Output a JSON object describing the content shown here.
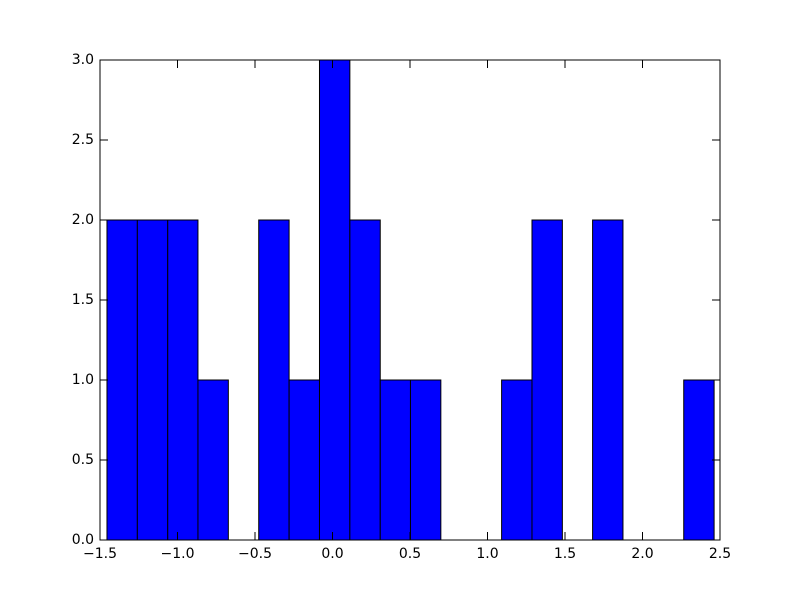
{
  "chart_data": {
    "type": "histogram",
    "bins": [
      -1.455,
      -1.259,
      -1.063,
      -0.868,
      -0.672,
      -0.476,
      -0.28,
      -0.084,
      0.112,
      0.308,
      0.503,
      0.699,
      0.895,
      1.091,
      1.287,
      1.483,
      1.678,
      1.874,
      2.07,
      2.266,
      2.462
    ],
    "values": [
      2,
      2,
      2,
      1,
      0,
      2,
      1,
      3,
      2,
      1,
      1,
      0,
      0,
      1,
      2,
      0,
      2,
      0,
      0,
      1
    ],
    "color": "#0000ff",
    "xlim": [
      -1.5,
      2.5
    ],
    "xticks": [
      {
        "value": -1.5,
        "label": "−1.5"
      },
      {
        "value": -1.0,
        "label": "−1.0"
      },
      {
        "value": -0.5,
        "label": "−0.5"
      },
      {
        "value": 0,
        "label": "0.0"
      },
      0.5,
      {
        "value": 1,
        "label": "1.0"
      },
      1.5,
      {
        "value": 2,
        "label": "2.0"
      },
      2.5
    ],
    "ylim": [
      0,
      3
    ],
    "yticks": [
      {
        "value": 0,
        "label": "0.0"
      },
      0.5,
      {
        "value": 1,
        "label": "1.0"
      },
      1.5,
      {
        "value": 2,
        "label": "2.0"
      },
      2.5,
      {
        "value": 3,
        "label": "3.0"
      }
    ]
  }
}
